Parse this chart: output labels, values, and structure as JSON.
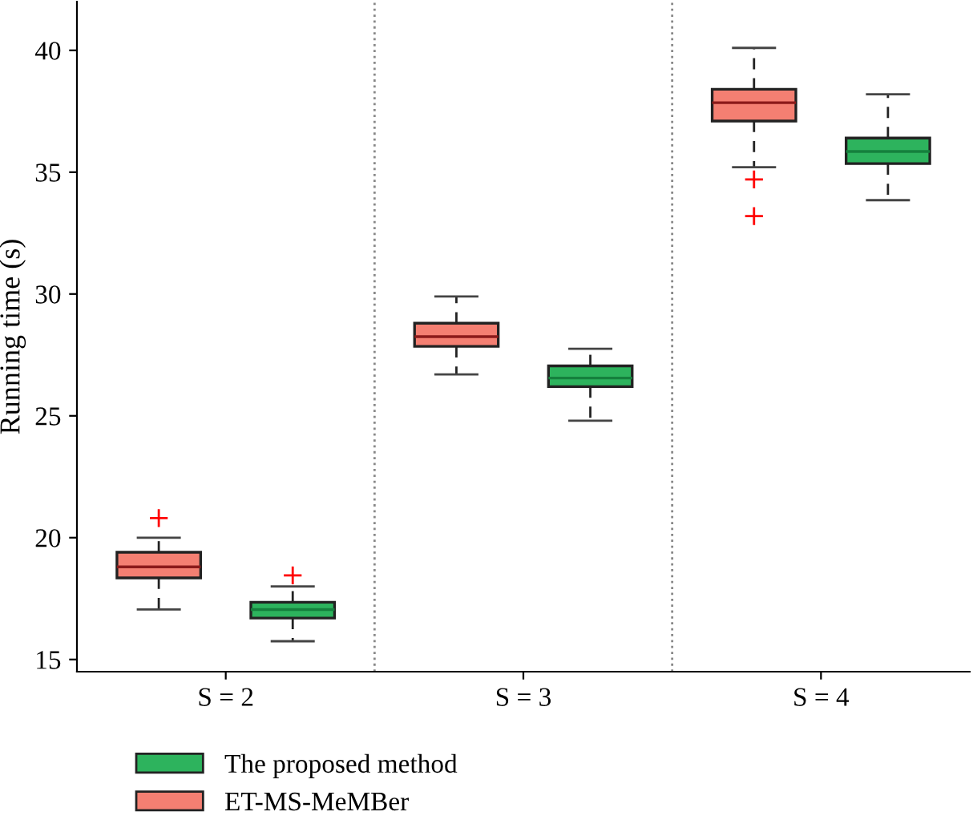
{
  "chart_data": {
    "type": "box",
    "ylabel": "Running time (s)",
    "categories": [
      "S = 2",
      "S = 3",
      "S = 4"
    ],
    "series": [
      {
        "name": "ET-MS-MeMBer",
        "color": "#f47f72",
        "boxes": [
          {
            "low": 17.05,
            "q1": 18.35,
            "median": 18.8,
            "q3": 19.4,
            "high": 20.0,
            "outliers": [
              20.8
            ]
          },
          {
            "low": 26.7,
            "q1": 27.85,
            "median": 28.25,
            "q3": 28.8,
            "high": 29.9
          },
          {
            "low": 35.2,
            "q1": 37.1,
            "median": 37.85,
            "q3": 38.4,
            "high": 40.1,
            "outliers": [
              34.7,
              33.2
            ]
          }
        ]
      },
      {
        "name": "The proposed method",
        "color": "#2db35d",
        "boxes": [
          {
            "low": 15.75,
            "q1": 16.7,
            "median": 17.05,
            "q3": 17.35,
            "high": 18.0,
            "outliers": [
              18.45
            ]
          },
          {
            "low": 24.8,
            "q1": 26.2,
            "median": 26.55,
            "q3": 27.05,
            "high": 27.75
          },
          {
            "low": 33.85,
            "q1": 35.35,
            "median": 35.85,
            "q3": 36.4,
            "high": 38.2
          }
        ]
      }
    ],
    "ylim": [
      14.5,
      42
    ],
    "yticks": [
      15,
      20,
      25,
      30,
      35,
      40
    ],
    "grid": false,
    "legend": "bottom left"
  }
}
